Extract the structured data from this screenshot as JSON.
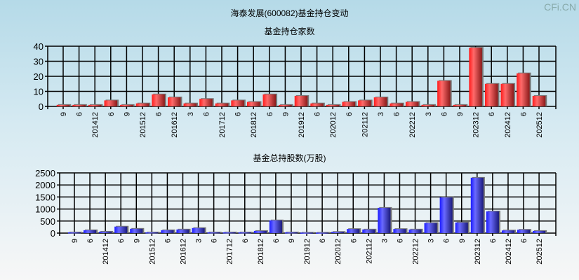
{
  "title": "海泰发展(600082)基金持仓变动",
  "logo": "CFi.CN",
  "chart_data": [
    {
      "type": "bar",
      "title": "基金持仓家数",
      "color": "#e8202a",
      "ylim": [
        0,
        40
      ],
      "yticks": [
        0,
        10,
        20,
        30,
        40
      ],
      "categories": [
        "9",
        "6",
        "201412",
        "6",
        "9",
        "201512",
        "6",
        "201612",
        "3",
        "6",
        "201712",
        "6",
        "201812",
        "6",
        "9",
        "201912",
        "6",
        "202012",
        "6",
        "202112",
        "3",
        "6",
        "202212",
        "3",
        "6",
        "9",
        "202312",
        "6",
        "202412",
        "6",
        "202512"
      ],
      "values": [
        1,
        1,
        1,
        4,
        1,
        2,
        8,
        6,
        2,
        5,
        2,
        4,
        3,
        8,
        1,
        7,
        2,
        1,
        3,
        4,
        6,
        2,
        3,
        1,
        17,
        1,
        39,
        15,
        15,
        22,
        7
      ]
    },
    {
      "type": "bar",
      "title": "基金总持股数(万股)",
      "color": "#2020e0",
      "ylim": [
        0,
        2500
      ],
      "yticks": [
        0,
        500,
        1000,
        1500,
        2000,
        2500
      ],
      "categories": [
        "9",
        "6",
        "201412",
        "6",
        "9",
        "201512",
        "6",
        "201612",
        "3",
        "6",
        "201712",
        "6",
        "201812",
        "6",
        "9",
        "201912",
        "6",
        "202012",
        "6",
        "202112",
        "3",
        "6",
        "202212",
        "3",
        "6",
        "9",
        "202312",
        "6",
        "202412",
        "6",
        "202512"
      ],
      "values": [
        30,
        120,
        60,
        270,
        180,
        30,
        120,
        150,
        210,
        30,
        30,
        30,
        90,
        530,
        30,
        20,
        20,
        50,
        170,
        150,
        1050,
        170,
        150,
        420,
        1480,
        440,
        2300,
        900,
        110,
        140,
        90
      ]
    }
  ]
}
